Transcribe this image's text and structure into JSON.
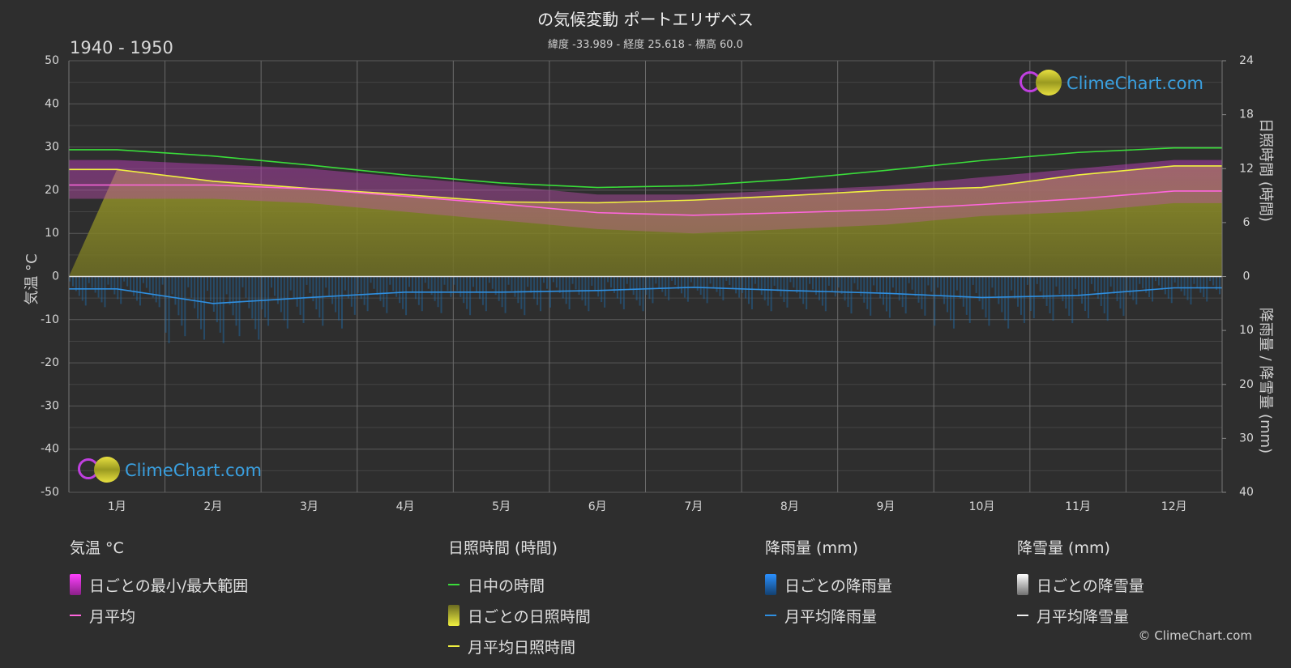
{
  "header": {
    "title": "の気候変動 ポートエリザベス",
    "subtitle": "緯度 -33.989 - 経度 25.618 - 標高 60.0",
    "period": "1940 - 1950"
  },
  "axes": {
    "left_label": "気温 °C",
    "right_top_label": "日照時間 (時間)",
    "right_bottom_label": "降雨量 / 降雪量 (mm)"
  },
  "logo": {
    "text": "ClimeChart.com"
  },
  "copyright": "© ClimeChart.com",
  "legend": {
    "temperature": {
      "head": "気温 °C",
      "daily_range": "日ごとの最小/最大範囲",
      "monthly_avg": "月平均"
    },
    "sunshine": {
      "head": "日照時間 (時間)",
      "daylight": "日中の時間",
      "daily_sunshine": "日ごとの日照時間",
      "monthly_sunshine": "月平均日照時間"
    },
    "rain": {
      "head": "降雨量 (mm)",
      "daily_rain": "日ごとの降雨量",
      "monthly_rain": "月平均降雨量"
    },
    "snow": {
      "head": "降雪量 (mm)",
      "daily_snow": "日ごとの降雪量",
      "monthly_snow": "月平均降雪量"
    }
  },
  "colors": {
    "daylight": "#3adc3a",
    "sunshine_avg": "#f0f040",
    "temp_avg": "#ff66dd",
    "rain_avg": "#2f8fe0",
    "temp_range": "#e040e0",
    "sunshine_fill": "#b8b830",
    "rain_bar": "#1e7fd0"
  },
  "chart_data": {
    "type": "line",
    "categories": [
      "1月",
      "2月",
      "3月",
      "4月",
      "5月",
      "6月",
      "7月",
      "8月",
      "9月",
      "10月",
      "11月",
      "12月"
    ],
    "temp_axis": {
      "ticks": [
        50,
        40,
        30,
        20,
        10,
        0,
        -10,
        -20,
        -30,
        -40,
        -50
      ],
      "ylim": [
        -50,
        50
      ]
    },
    "sun_axis": {
      "ticks": [
        24,
        18,
        12,
        6,
        0
      ],
      "ylim": [
        0,
        24
      ]
    },
    "precip_axis": {
      "ticks": [
        0,
        10,
        20,
        30,
        40
      ],
      "ylim": [
        0,
        40
      ]
    },
    "series": [
      {
        "name": "日中の時間",
        "values": [
          14.1,
          13.4,
          12.4,
          11.3,
          10.4,
          9.9,
          10.1,
          10.8,
          11.8,
          12.9,
          13.8,
          14.3
        ]
      },
      {
        "name": "月平均日照時間",
        "values": [
          11.9,
          10.6,
          9.8,
          9.1,
          8.3,
          8.2,
          8.5,
          9.0,
          9.6,
          9.9,
          11.3,
          12.3
        ]
      },
      {
        "name": "月平均",
        "values": [
          21.2,
          21.2,
          20.3,
          18.6,
          16.8,
          14.8,
          14.2,
          14.8,
          15.5,
          16.7,
          18.0,
          19.8
        ]
      },
      {
        "name": "月平均降雨量",
        "values": [
          2.3,
          5.0,
          3.9,
          2.9,
          2.9,
          2.6,
          2.0,
          2.6,
          3.1,
          3.9,
          3.5,
          2.1
        ]
      },
      {
        "name": "月平均降雪量",
        "values": [
          0,
          0,
          0,
          0,
          0,
          0,
          0,
          0,
          0,
          0,
          0,
          0
        ]
      }
    ],
    "daily_temp_max": [
      27,
      26,
      25,
      23,
      21,
      19,
      19,
      20,
      21,
      23,
      25,
      27
    ],
    "daily_temp_min": [
      18,
      18,
      17,
      15,
      13,
      11,
      10,
      11,
      12,
      14,
      15,
      17
    ]
  }
}
